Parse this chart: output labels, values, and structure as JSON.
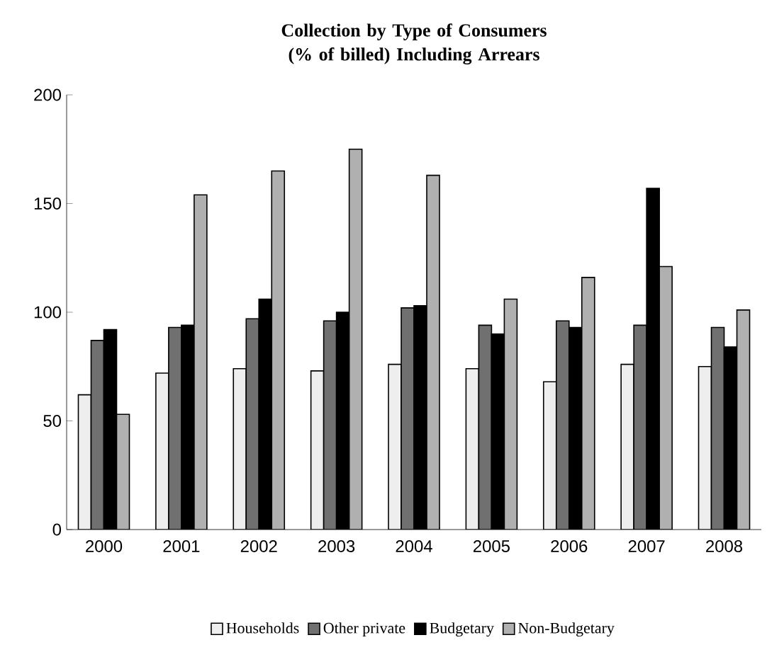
{
  "chart_data": {
    "type": "bar",
    "title": "Collection by Type of Consumers (% of billed) Including Arrears",
    "categories": [
      "2000",
      "2001",
      "2002",
      "2003",
      "2004",
      "2005",
      "2006",
      "2007",
      "2008"
    ],
    "series": [
      {
        "name": "Households",
        "color": "#eeeeee",
        "values": [
          62,
          72,
          74,
          73,
          76,
          74,
          68,
          76,
          75
        ]
      },
      {
        "name": "Other private",
        "color": "#707070",
        "values": [
          87,
          93,
          97,
          96,
          102,
          94,
          96,
          94,
          93
        ]
      },
      {
        "name": "Budgetary",
        "color": "#000000",
        "values": [
          92,
          94,
          106,
          100,
          103,
          90,
          93,
          157,
          84
        ]
      },
      {
        "name": "Non-Budgetary",
        "color": "#b0b0b0",
        "values": [
          53,
          154,
          165,
          175,
          163,
          106,
          116,
          121,
          101
        ]
      }
    ],
    "ylim": [
      0,
      200
    ],
    "yticks": [
      0,
      50,
      100,
      150,
      200
    ],
    "legend": "bottom"
  }
}
